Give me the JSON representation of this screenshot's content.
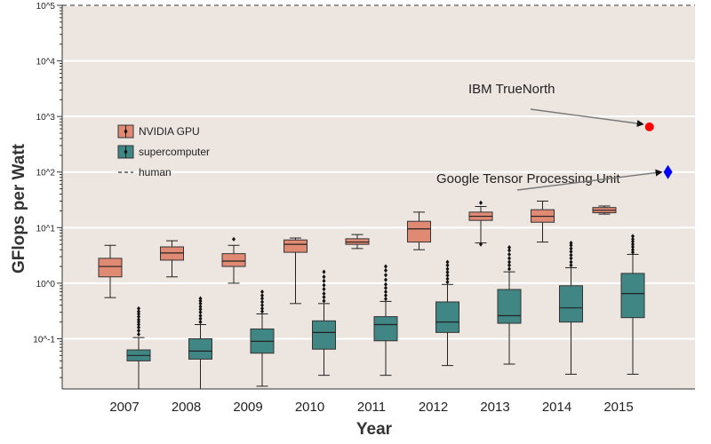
{
  "chart_data": {
    "type": "box",
    "xlabel": "Year",
    "ylabel": "GFlops per Watt",
    "yscale": "log",
    "ylim": [
      0.0125,
      100000
    ],
    "categories": [
      "2007",
      "2008",
      "2009",
      "2010",
      "2011",
      "2012",
      "2013",
      "2014",
      "2015"
    ],
    "ytick_labels": [
      "10^-1",
      "10^0",
      "10^1",
      "10^2",
      "10^3",
      "10^4",
      "10^5"
    ],
    "ytick_values": [
      0.1,
      1,
      10,
      100,
      1000,
      10000,
      100000
    ],
    "grid": true,
    "legend": {
      "position": "upper-left",
      "entries": [
        {
          "label": "NVIDIA GPU",
          "color": "#e08a74"
        },
        {
          "label": "supercomputer",
          "color": "#3f8684"
        },
        {
          "label": "human",
          "style": "dashed"
        }
      ]
    },
    "series": [
      {
        "name": "NVIDIA GPU",
        "color": "#e08a74",
        "boxes": [
          {
            "category": "2007",
            "whislo": 0.55,
            "q1": 1.3,
            "med": 2.0,
            "q3": 2.8,
            "whishi": 4.8,
            "fliers": []
          },
          {
            "category": "2008",
            "whislo": 1.3,
            "q1": 2.6,
            "med": 3.5,
            "q3": 4.5,
            "whishi": 5.8,
            "fliers": []
          },
          {
            "category": "2009",
            "whislo": 1.0,
            "q1": 2.0,
            "med": 2.5,
            "q3": 3.4,
            "whishi": 4.8,
            "fliers": [
              6.2
            ]
          },
          {
            "category": "2010",
            "whislo": 0.43,
            "q1": 3.6,
            "med": 5.0,
            "q3": 6.0,
            "whishi": 6.5,
            "fliers": []
          },
          {
            "category": "2011",
            "whislo": 4.2,
            "q1": 5.0,
            "med": 5.5,
            "q3": 6.3,
            "whishi": 7.5,
            "fliers": []
          },
          {
            "category": "2012",
            "whislo": 4.0,
            "q1": 5.5,
            "med": 9.5,
            "q3": 13.0,
            "whishi": 19.0,
            "fliers": []
          },
          {
            "category": "2013",
            "whislo": 5.3,
            "q1": 13.5,
            "med": 16.0,
            "q3": 19.0,
            "whishi": 24.0,
            "fliers": [
              5.0,
              28.0
            ]
          },
          {
            "category": "2014",
            "whislo": 5.5,
            "q1": 12.5,
            "med": 16.0,
            "q3": 21.0,
            "whishi": 30.0,
            "fliers": []
          },
          {
            "category": "2015",
            "whislo": 17.5,
            "q1": 18.5,
            "med": 20.5,
            "q3": 23.0,
            "whishi": 24.5,
            "fliers": []
          }
        ]
      },
      {
        "name": "supercomputer",
        "color": "#3f8684",
        "boxes": [
          {
            "category": "2007",
            "whislo": 0.0125,
            "q1": 0.04,
            "med": 0.05,
            "q3": 0.063,
            "whishi": 0.105,
            "fliers": [
              0.12,
              0.14,
              0.16,
              0.18,
              0.2,
              0.22,
              0.25,
              0.28,
              0.31,
              0.35
            ]
          },
          {
            "category": "2008",
            "whislo": 0.0125,
            "q1": 0.043,
            "med": 0.06,
            "q3": 0.1,
            "whishi": 0.18,
            "fliers": [
              0.2,
              0.23,
              0.26,
              0.3,
              0.34,
              0.38,
              0.43,
              0.48,
              0.53
            ]
          },
          {
            "category": "2009",
            "whislo": 0.014,
            "q1": 0.055,
            "med": 0.09,
            "q3": 0.15,
            "whishi": 0.28,
            "fliers": [
              0.31,
              0.35,
              0.4,
              0.46,
              0.53,
              0.6,
              0.7
            ]
          },
          {
            "category": "2010",
            "whislo": 0.022,
            "q1": 0.065,
            "med": 0.13,
            "q3": 0.21,
            "whishi": 0.43,
            "fliers": [
              0.48,
              0.56,
              0.65,
              0.78,
              0.92,
              1.1,
              1.3,
              1.6
            ]
          },
          {
            "category": "2011",
            "whislo": 0.022,
            "q1": 0.092,
            "med": 0.18,
            "q3": 0.25,
            "whishi": 0.47,
            "fliers": [
              0.52,
              0.6,
              0.7,
              0.82,
              0.95,
              1.15,
              1.4,
              1.7,
              2.0
            ]
          },
          {
            "category": "2012",
            "whislo": 0.033,
            "q1": 0.13,
            "med": 0.2,
            "q3": 0.46,
            "whishi": 0.95,
            "fliers": [
              1.05,
              1.2,
              1.38,
              1.58,
              1.8,
              2.1,
              2.4
            ]
          },
          {
            "category": "2013",
            "whislo": 0.035,
            "q1": 0.19,
            "med": 0.26,
            "q3": 0.77,
            "whishi": 1.6,
            "fliers": [
              1.8,
              2.1,
              2.4,
              2.8,
              3.3,
              3.9,
              4.4
            ]
          },
          {
            "category": "2014",
            "whislo": 0.023,
            "q1": 0.2,
            "med": 0.36,
            "q3": 0.9,
            "whishi": 1.9,
            "fliers": [
              2.1,
              2.4,
              2.8,
              3.2,
              3.7,
              4.2,
              4.8,
              5.3
            ]
          },
          {
            "category": "2015",
            "whislo": 0.023,
            "q1": 0.24,
            "med": 0.65,
            "q3": 1.5,
            "whishi": 3.3,
            "fliers": [
              3.6,
              4.0,
              4.5,
              5.0,
              5.6,
              6.2,
              7.0
            ]
          }
        ]
      }
    ],
    "reference_lines": [
      {
        "label": "human",
        "y": 100000,
        "style": "dashed",
        "color": "#555555"
      }
    ],
    "points": [
      {
        "label": "IBM TrueNorth",
        "x": 2015.5,
        "y": 650,
        "color": "#ff0000",
        "marker": "circle"
      },
      {
        "label": "Google Tensor Processing Unit",
        "x": 2015.8,
        "y": 100,
        "color": "#0000ff",
        "marker": "diamond"
      }
    ],
    "annotations": [
      {
        "text": "IBM TrueNorth",
        "target": "IBM TrueNorth"
      },
      {
        "text": "Google Tensor Processing Unit",
        "target": "Google Tensor Processing Unit"
      }
    ]
  }
}
